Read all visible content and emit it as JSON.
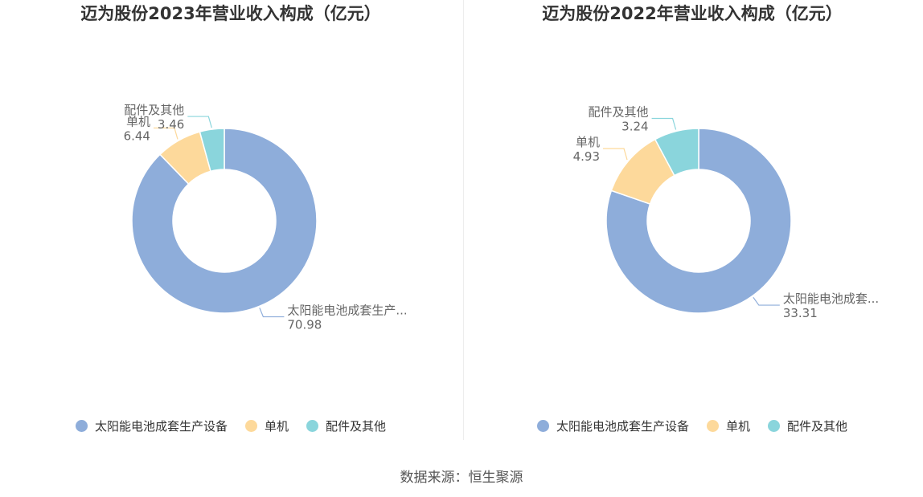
{
  "chart_data": [
    {
      "type": "pie",
      "variant": "donut",
      "title": "迈为股份2023年营业收入构成（亿元）",
      "slices": [
        {
          "name": "太阳能电池成套生产设备",
          "label": "太阳能电池成套生产...",
          "value": 70.98,
          "color": "#8eadda"
        },
        {
          "name": "单机",
          "label": "单机",
          "value": 6.44,
          "color": "#fdd99b"
        },
        {
          "name": "配件及其他",
          "label": "配件及其他",
          "value": 3.46,
          "color": "#8ad5dc"
        }
      ],
      "legend_position": "bottom"
    },
    {
      "type": "pie",
      "variant": "donut",
      "title": "迈为股份2022年营业收入构成（亿元）",
      "slices": [
        {
          "name": "太阳能电池成套生产设备",
          "label": "太阳能电池成套...",
          "value": 33.31,
          "color": "#8eadda"
        },
        {
          "name": "单机",
          "label": "单机",
          "value": 4.93,
          "color": "#fdd99b"
        },
        {
          "name": "配件及其他",
          "label": "配件及其他",
          "value": 3.24,
          "color": "#8ad5dc"
        }
      ],
      "legend_position": "bottom"
    }
  ],
  "source": "数据来源：恒生聚源"
}
